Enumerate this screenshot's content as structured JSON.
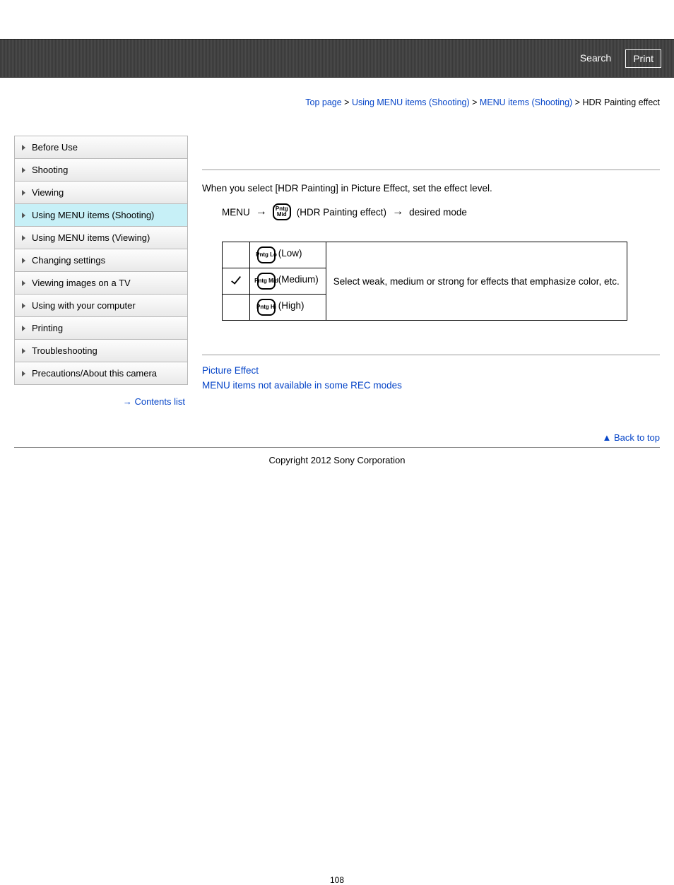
{
  "header": {
    "search_label": "Search",
    "print_label": "Print"
  },
  "breadcrumb": {
    "items": [
      "Top page",
      "Using MENU items (Shooting)",
      "MENU items (Shooting)"
    ],
    "current": "HDR Painting effect",
    "sep": " > "
  },
  "sidebar": {
    "items": [
      {
        "label": "Before Use",
        "active": false
      },
      {
        "label": "Shooting",
        "active": false
      },
      {
        "label": "Viewing",
        "active": false
      },
      {
        "label": "Using MENU items (Shooting)",
        "active": true
      },
      {
        "label": "Using MENU items (Viewing)",
        "active": false
      },
      {
        "label": "Changing settings",
        "active": false
      },
      {
        "label": "Viewing images on a TV",
        "active": false
      },
      {
        "label": "Using with your computer",
        "active": false
      },
      {
        "label": "Printing",
        "active": false
      },
      {
        "label": "Troubleshooting",
        "active": false
      },
      {
        "label": "Precautions/About this camera",
        "active": false
      }
    ],
    "contents_list": "Contents list"
  },
  "main": {
    "intro": "When you select [HDR Painting] in Picture Effect, set the effect level.",
    "path": {
      "menu": "MENU",
      "icon_text": "Pntg Mid",
      "step": "(HDR Painting effect)",
      "desired": "desired mode"
    },
    "table": {
      "rows": [
        {
          "selected": false,
          "icon": "Pntg Lo",
          "label": "(Low)"
        },
        {
          "selected": true,
          "icon": "Pntg Mid",
          "label": "(Medium)"
        },
        {
          "selected": false,
          "icon": "Pntg Hi",
          "label": "(High)"
        }
      ],
      "description": "Select weak, medium or strong for effects that emphasize color, etc."
    },
    "related": {
      "links": [
        "Picture Effect",
        "MENU items not available in some REC modes"
      ]
    }
  },
  "footer": {
    "back_to_top": "Back to top",
    "copyright": "Copyright 2012 Sony Corporation",
    "page_number": "108"
  }
}
